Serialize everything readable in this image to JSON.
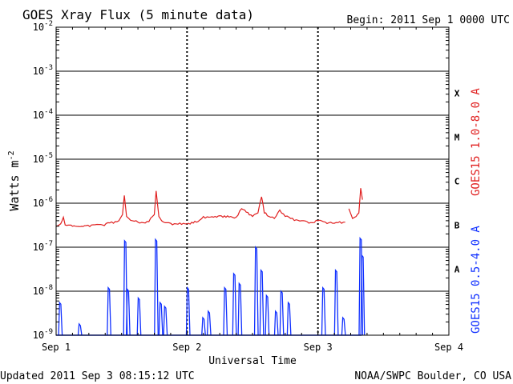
{
  "chart_data": {
    "type": "line",
    "title": "GOES Xray Flux (5 minute data)",
    "begin_label": "Begin:  2011 Sep 1 0000 UTC",
    "ylabel": "Watts m",
    "ylabel_sup": "-2",
    "xlabel": "Universal Time",
    "yscale": "log",
    "ylim": [
      1e-09,
      0.01
    ],
    "xlim": [
      "2011-09-01T00:00",
      "2011-09-04T00:00"
    ],
    "y_ticks": [
      {
        "base": "10",
        "exp": "-9",
        "value": 1e-09
      },
      {
        "base": "10",
        "exp": "-8",
        "value": 1e-08
      },
      {
        "base": "10",
        "exp": "-7",
        "value": 1e-07
      },
      {
        "base": "10",
        "exp": "-6",
        "value": 1e-06
      },
      {
        "base": "10",
        "exp": "-5",
        "value": 1e-05
      },
      {
        "base": "10",
        "exp": "-4",
        "value": 0.0001
      },
      {
        "base": "10",
        "exp": "-3",
        "value": 0.001
      },
      {
        "base": "10",
        "exp": "-2",
        "value": 0.01
      }
    ],
    "x_ticks": [
      {
        "label": "Sep 1",
        "value": "2011-09-01T00:00"
      },
      {
        "label": "Sep 2",
        "value": "2011-09-02T00:00"
      },
      {
        "label": "Sep 3",
        "value": "2011-09-03T00:00"
      },
      {
        "label": "Sep 4",
        "value": "2011-09-04T00:00"
      }
    ],
    "flare_classes": [
      {
        "label": "X",
        "value": 0.0001
      },
      {
        "label": "M",
        "value": 1e-05
      },
      {
        "label": "C",
        "value": 1e-06
      },
      {
        "label": "B",
        "value": 1e-07
      },
      {
        "label": "A",
        "value": 1e-08
      }
    ],
    "grid": true,
    "series": [
      {
        "name": "GOES15 1.0-8.0 A",
        "color": "#e02020",
        "x": [
          "2011-09-01T00:00",
          "2011-09-01T00:50",
          "2011-09-01T01:20",
          "2011-09-01T01:40",
          "2011-09-01T03:00",
          "2011-09-01T05:30",
          "2011-09-01T06:30",
          "2011-09-01T07:30",
          "2011-09-01T08:30",
          "2011-09-01T09:30",
          "2011-09-01T10:30",
          "2011-09-01T11:30",
          "2011-09-01T12:10",
          "2011-09-01T12:30",
          "2011-09-01T12:55",
          "2011-09-01T13:20",
          "2011-09-01T14:00",
          "2011-09-01T15:00",
          "2011-09-01T16:00",
          "2011-09-01T17:00",
          "2011-09-01T18:00",
          "2011-09-01T18:20",
          "2011-09-01T18:50",
          "2011-09-01T19:20",
          "2011-09-01T20:00",
          "2011-09-01T21:00",
          "2011-09-01T22:00",
          "2011-09-01T23:00",
          "2011-09-02T00:00",
          "2011-09-02T02:00",
          "2011-09-02T03:00",
          "2011-09-02T04:00",
          "2011-09-02T06:00",
          "2011-09-02T08:00",
          "2011-09-02T09:00",
          "2011-09-02T10:00",
          "2011-09-02T12:00",
          "2011-09-02T13:00",
          "2011-09-02T13:40",
          "2011-09-02T14:10",
          "2011-09-02T15:00",
          "2011-09-02T16:00",
          "2011-09-02T17:00",
          "2011-09-02T18:00",
          "2011-09-02T19:00",
          "2011-09-02T20:00",
          "2011-09-02T21:00",
          "2011-09-02T22:00",
          "2011-09-02T23:00",
          "2011-09-03T00:00",
          "2011-09-03T01:00",
          "2011-09-03T02:00",
          "2011-09-03T03:00",
          "2011-09-03T04:00",
          "2011-09-03T05:00"
        ],
        "values": [
          3e-07,
          3.4e-07,
          4.8e-07,
          3.2e-07,
          3e-07,
          3.1e-07,
          3.2e-07,
          3.3e-07,
          3.2e-07,
          3.6e-07,
          3.5e-07,
          4e-07,
          5.5e-07,
          1.5e-06,
          5e-07,
          4.5e-07,
          4e-07,
          3.7e-07,
          3.6e-07,
          3.8e-07,
          5.5e-07,
          1.9e-06,
          5e-07,
          4e-07,
          3.6e-07,
          3.5e-07,
          3.4e-07,
          3.3e-07,
          3.4e-07,
          3.8e-07,
          5e-07,
          4.8e-07,
          5.2e-07,
          5e-07,
          4.8e-07,
          7.5e-07,
          5e-07,
          6e-07,
          1.4e-06,
          6e-07,
          5e-07,
          4.5e-07,
          7e-07,
          5e-07,
          4.5e-07,
          4.2e-07,
          4e-07,
          3.8e-07,
          3.6e-07,
          4e-07,
          3.8e-07,
          3.6e-07,
          3.5e-07,
          3.8e-07,
          3.7e-07
        ],
        "segment2_x": [
          "2011-09-03T05:40",
          "2011-09-03T06:20",
          "2011-09-03T07:00",
          "2011-09-03T07:30",
          "2011-09-03T07:50",
          "2011-09-03T08:10"
        ],
        "segment2_values": [
          7.5e-07,
          4.5e-07,
          5e-07,
          6e-07,
          2.2e-06,
          1.2e-06
        ]
      },
      {
        "name": "GOES15 0.5-4.0 A",
        "color": "#1030ff",
        "floor": 1e-09,
        "peaks": [
          {
            "x": "2011-09-01T00:45",
            "value": 5.5e-09
          },
          {
            "x": "2011-09-01T04:20",
            "value": 1.8e-09
          },
          {
            "x": "2011-09-01T09:40",
            "value": 1.2e-08
          },
          {
            "x": "2011-09-01T12:40",
            "value": 1.4e-07
          },
          {
            "x": "2011-09-01T13:10",
            "value": 1.1e-08
          },
          {
            "x": "2011-09-01T15:10",
            "value": 7e-09
          },
          {
            "x": "2011-09-01T18:20",
            "value": 1.5e-07
          },
          {
            "x": "2011-09-01T19:10",
            "value": 5.5e-09
          },
          {
            "x": "2011-09-01T20:00",
            "value": 4.5e-09
          },
          {
            "x": "2011-09-02T00:10",
            "value": 1.2e-08
          },
          {
            "x": "2011-09-02T03:00",
            "value": 2.5e-09
          },
          {
            "x": "2011-09-02T04:00",
            "value": 3.5e-09
          },
          {
            "x": "2011-09-02T07:00",
            "value": 1.2e-08
          },
          {
            "x": "2011-09-02T08:40",
            "value": 2.5e-08
          },
          {
            "x": "2011-09-02T09:40",
            "value": 1.5e-08
          },
          {
            "x": "2011-09-02T12:40",
            "value": 1e-07
          },
          {
            "x": "2011-09-02T13:40",
            "value": 3e-08
          },
          {
            "x": "2011-09-02T14:40",
            "value": 8e-09
          },
          {
            "x": "2011-09-02T16:20",
            "value": 3.5e-09
          },
          {
            "x": "2011-09-02T17:20",
            "value": 1e-08
          },
          {
            "x": "2011-09-02T18:40",
            "value": 5.5e-09
          },
          {
            "x": "2011-09-03T01:00",
            "value": 1.2e-08
          },
          {
            "x": "2011-09-03T03:20",
            "value": 3e-08
          },
          {
            "x": "2011-09-03T04:40",
            "value": 2.5e-09
          },
          {
            "x": "2011-09-03T07:50",
            "value": 1.6e-07
          },
          {
            "x": "2011-09-03T08:10",
            "value": 6.5e-08
          }
        ]
      }
    ]
  },
  "footer": {
    "updated": "Updated 2011 Sep  3 08:15:12 UTC",
    "credit": "NOAA/SWPC Boulder, CO USA"
  }
}
